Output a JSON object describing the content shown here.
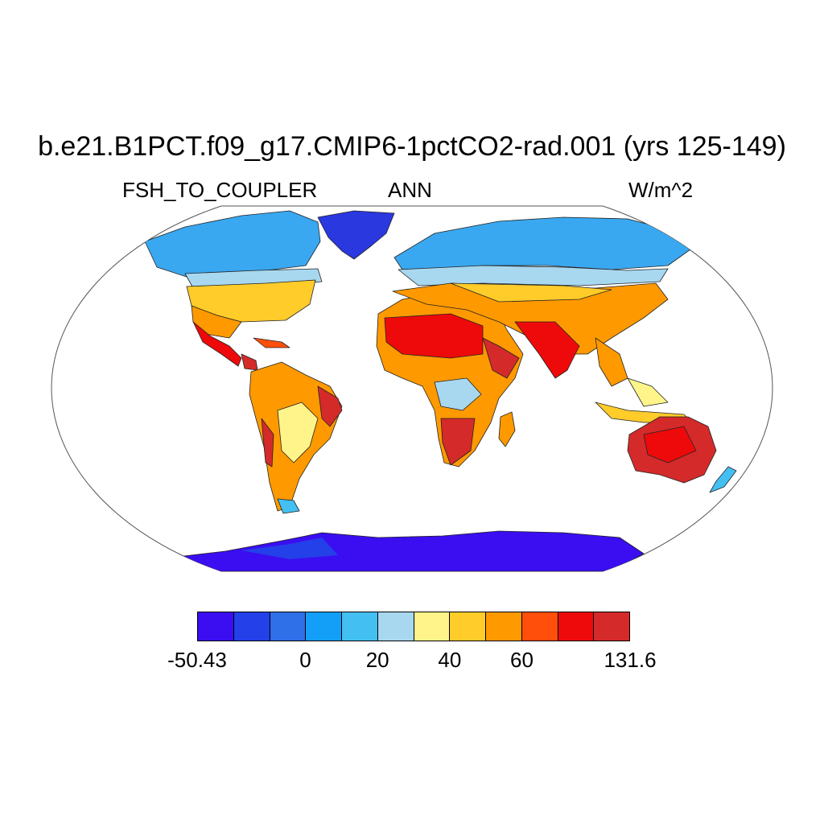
{
  "title": "b.e21.B1PCT.f09_g17.CMIP6-1pctCO2-rad.001 (yrs 125-149)",
  "left_label": "FSH_TO_COUPLER",
  "center_label": "ANN",
  "right_label": "W/m^2",
  "map": {
    "projection": "robinson",
    "variable": "FSH_TO_COUPLER",
    "period": "ANN",
    "units": "W/m^2"
  },
  "colorbar": {
    "colors": [
      "#3a0ef0",
      "#2440e8",
      "#2f6fe8",
      "#139ff8",
      "#43bff2",
      "#a8d8f0",
      "#fff48a",
      "#ffcc2a",
      "#ff9900",
      "#ff4f0a",
      "#ee0a0a",
      "#d42a2a"
    ],
    "labels": [
      {
        "text": "-50.43",
        "boundary": 0
      },
      {
        "text": "0",
        "boundary": 3
      },
      {
        "text": "20",
        "boundary": 5
      },
      {
        "text": "40",
        "boundary": 7
      },
      {
        "text": "60",
        "boundary": 9
      },
      {
        "text": "131.6",
        "boundary": 12
      }
    ]
  }
}
